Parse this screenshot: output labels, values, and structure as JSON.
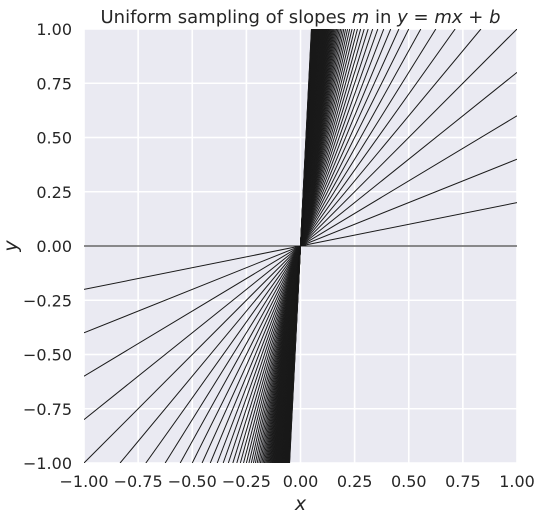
{
  "chart_data": {
    "type": "line",
    "title": "Uniform sampling of slopes m in y = mx + b",
    "title_parts": [
      "Uniform sampling of slopes ",
      "m",
      " in ",
      "y",
      " = ",
      "mx",
      " + ",
      "b"
    ],
    "xlabel": "x",
    "ylabel": "y",
    "xlim": [
      -1.0,
      1.0
    ],
    "ylim": [
      -1.0,
      1.0
    ],
    "x_ticks": [
      "−1.00",
      "−0.75",
      "−0.50",
      "−0.25",
      "0.00",
      "0.25",
      "0.50",
      "0.75",
      "1.00"
    ],
    "y_ticks": [
      "−1.00",
      "−0.75",
      "−0.50",
      "−0.25",
      "0.00",
      "0.25",
      "0.50",
      "0.75",
      "1.00"
    ],
    "intercept_b": 0,
    "slope_m_start": 0,
    "slope_m_step": 0.2,
    "slope_m_count": 100,
    "line_color": "#1a1a1a",
    "background_color": "#eaeaf2",
    "grid": true,
    "grid_color": "#ffffff"
  }
}
